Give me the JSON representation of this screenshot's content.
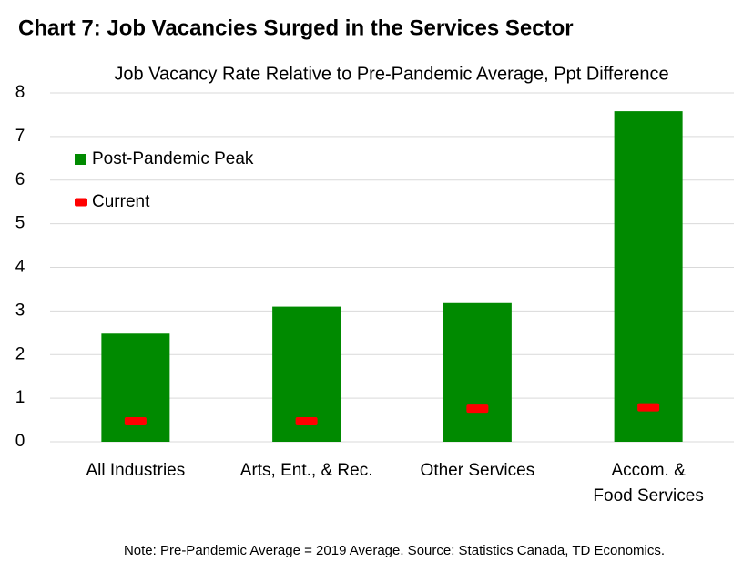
{
  "chart_data": {
    "type": "bar",
    "title": "Chart 7: Job Vacancies Surged in the Services Sector",
    "subtitle": "Job Vacancy Rate Relative to Pre-Pandemic Average, Ppt Difference",
    "note": "Note: Pre-Pandemic Average = 2019 Average. Source: Statistics Canada, TD Economics.",
    "categories": [
      "All Industries",
      "Arts, Ent., & Rec.",
      "Other Services",
      "Accom. &\nFood Services"
    ],
    "series": [
      {
        "name": "Post-Pandemic Peak",
        "color": "#008a00",
        "style": "bar",
        "values": [
          2.48,
          3.1,
          3.18,
          7.58
        ]
      },
      {
        "name": "Current",
        "color": "#ff0000",
        "style": "marker",
        "values": [
          0.47,
          0.47,
          0.76,
          0.79
        ]
      }
    ],
    "ylim": [
      0,
      8
    ],
    "yticks": [
      0,
      1,
      2,
      3,
      4,
      5,
      6,
      7,
      8
    ],
    "grid": true,
    "legend": "upper-left"
  }
}
